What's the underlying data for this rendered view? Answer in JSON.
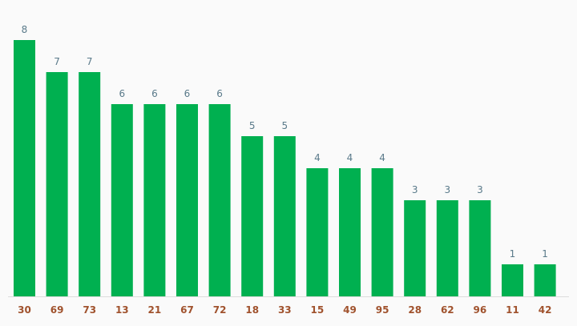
{
  "chart_data": {
    "type": "bar",
    "title": "",
    "xlabel": "",
    "ylabel": "",
    "categories": [
      "30",
      "69",
      "73",
      "13",
      "21",
      "67",
      "72",
      "18",
      "33",
      "15",
      "49",
      "95",
      "28",
      "62",
      "96",
      "11",
      "42"
    ],
    "values": [
      8,
      7,
      7,
      6,
      6,
      6,
      6,
      5,
      5,
      4,
      4,
      4,
      3,
      3,
      3,
      1,
      1
    ],
    "ylim": [
      0,
      8
    ],
    "grid": false,
    "data_labels": true,
    "colors": {
      "bar": "#00b050",
      "value_label": "#5a7a8a",
      "category_label": "#a0522d",
      "baseline": "#dddddd",
      "background": "#fafafa"
    }
  }
}
